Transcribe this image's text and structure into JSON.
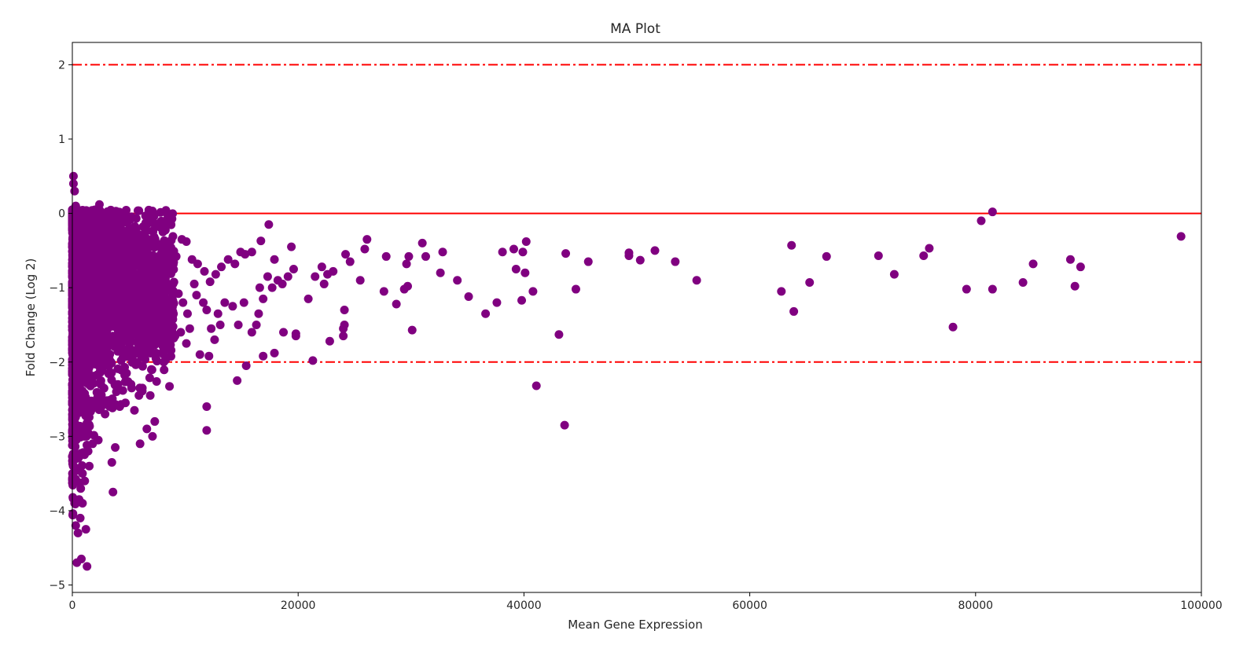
{
  "chart_data": {
    "type": "scatter",
    "title": "MA Plot",
    "xlabel": "Mean Gene Expression",
    "ylabel": "Fold Change (Log 2)",
    "xlim": [
      0,
      100000
    ],
    "ylim": [
      -5.1,
      2.3
    ],
    "x_ticks": [
      0,
      20000,
      40000,
      60000,
      80000,
      100000
    ],
    "x_tick_labels": [
      "0",
      "20000",
      "40000",
      "60000",
      "80000",
      "100000"
    ],
    "y_ticks": [
      2,
      1,
      0,
      -1,
      -2,
      -3,
      -4,
      -5
    ],
    "y_tick_labels": [
      "2",
      "1",
      "0",
      "−1",
      "−2",
      "−3",
      "−4",
      "−5"
    ],
    "grid": false,
    "point_color": "#800080",
    "reference_lines": [
      {
        "y": 2,
        "style": "dashdot",
        "color": "#ff0000"
      },
      {
        "y": 0,
        "style": "solid",
        "color": "#ff0000"
      },
      {
        "y": -2,
        "style": "dashdot",
        "color": "#ff0000"
      }
    ],
    "series": [
      {
        "points": [
          [
            100,
            0.5
          ],
          [
            100,
            0.4
          ],
          [
            200,
            0.3
          ],
          [
            300,
            0.1
          ],
          [
            150,
            -0.1
          ],
          [
            250,
            -0.3
          ],
          [
            400,
            -0.5
          ],
          [
            500,
            -0.7
          ],
          [
            80,
            -1.0
          ],
          [
            120,
            -1.4
          ],
          [
            200,
            -1.8
          ],
          [
            300,
            -2.1
          ],
          [
            400,
            -2.4
          ],
          [
            150,
            -2.7
          ],
          [
            250,
            -3.0
          ],
          [
            350,
            -3.3
          ],
          [
            100,
            -3.6
          ],
          [
            200,
            -3.9
          ],
          [
            300,
            -4.2
          ],
          [
            400,
            -4.7
          ],
          [
            800,
            -4.65
          ],
          [
            1300,
            -4.75
          ],
          [
            500,
            -4.3
          ],
          [
            700,
            -4.1
          ],
          [
            1200,
            -4.25
          ],
          [
            600,
            -3.85
          ],
          [
            900,
            -3.9
          ],
          [
            1100,
            -3.6
          ],
          [
            1500,
            -3.4
          ],
          [
            900,
            -3.5
          ],
          [
            1400,
            -3.2
          ],
          [
            1800,
            -3.1
          ],
          [
            2300,
            -3.05
          ],
          [
            3500,
            -3.35
          ],
          [
            3800,
            -3.15
          ],
          [
            3600,
            -3.75
          ],
          [
            2500,
            -2.5
          ],
          [
            2900,
            -2.7
          ],
          [
            3300,
            -2.6
          ],
          [
            3900,
            -2.4
          ],
          [
            4200,
            -2.6
          ],
          [
            4700,
            -2.55
          ],
          [
            5200,
            -2.3
          ],
          [
            5500,
            -2.65
          ],
          [
            5900,
            -2.45
          ],
          [
            6200,
            -2.35
          ],
          [
            6000,
            -3.1
          ],
          [
            6600,
            -2.9
          ],
          [
            7100,
            -3.0
          ],
          [
            6900,
            -2.45
          ],
          [
            7300,
            -2.8
          ],
          [
            7000,
            -2.1
          ],
          [
            4800,
            -2.15
          ],
          [
            5600,
            -2.0
          ],
          [
            6400,
            -1.9
          ],
          [
            7400,
            -1.95
          ],
          [
            8100,
            -2.0
          ],
          [
            8600,
            -1.8
          ],
          [
            9100,
            -1.65
          ],
          [
            9600,
            -1.6
          ],
          [
            10100,
            -1.75
          ],
          [
            10400,
            -1.55
          ],
          [
            10200,
            -1.35
          ],
          [
            9800,
            -1.2
          ],
          [
            11000,
            -1.1
          ],
          [
            11600,
            -1.2
          ],
          [
            11900,
            -1.3
          ],
          [
            12300,
            -1.55
          ],
          [
            12600,
            -1.7
          ],
          [
            13100,
            -1.5
          ],
          [
            12900,
            -1.35
          ],
          [
            13500,
            -1.2
          ],
          [
            14200,
            -1.25
          ],
          [
            14700,
            -1.5
          ],
          [
            15200,
            -1.2
          ],
          [
            15900,
            -1.6
          ],
          [
            16300,
            -1.5
          ],
          [
            16500,
            -1.35
          ],
          [
            16900,
            -1.15
          ],
          [
            16600,
            -1.0
          ],
          [
            17300,
            -0.85
          ],
          [
            17700,
            -1.0
          ],
          [
            18200,
            -0.9
          ],
          [
            18600,
            -0.95
          ],
          [
            19100,
            -0.85
          ],
          [
            19600,
            -0.75
          ],
          [
            19400,
            -0.45
          ],
          [
            17900,
            -0.62
          ],
          [
            16700,
            -0.37
          ],
          [
            17400,
            -0.15
          ],
          [
            15900,
            -0.52
          ],
          [
            15300,
            -0.55
          ],
          [
            14900,
            -0.52
          ],
          [
            14400,
            -0.68
          ],
          [
            13800,
            -0.62
          ],
          [
            13200,
            -0.72
          ],
          [
            12700,
            -0.82
          ],
          [
            12200,
            -0.92
          ],
          [
            11700,
            -0.78
          ],
          [
            11100,
            -0.68
          ],
          [
            10600,
            -0.62
          ],
          [
            10100,
            -0.38
          ],
          [
            9700,
            -0.35
          ],
          [
            9200,
            -0.58
          ],
          [
            8700,
            -0.48
          ],
          [
            8300,
            -0.52
          ],
          [
            8400,
            -0.08
          ],
          [
            7800,
            -0.42
          ],
          [
            7300,
            -0.62
          ],
          [
            6800,
            -0.38
          ],
          [
            6300,
            -0.32
          ],
          [
            5800,
            -0.42
          ],
          [
            5200,
            -0.2
          ],
          [
            4800,
            -0.12
          ],
          [
            4300,
            -0.22
          ],
          [
            3800,
            -0.32
          ],
          [
            2900,
            0.0
          ],
          [
            2400,
            0.12
          ],
          [
            1900,
            -0.08
          ],
          [
            3400,
            -0.58
          ],
          [
            4600,
            -0.78
          ],
          [
            5700,
            -0.92
          ],
          [
            6600,
            -0.68
          ],
          [
            7600,
            -1.12
          ],
          [
            8900,
            -1.32
          ],
          [
            9400,
            -1.08
          ],
          [
            10800,
            -0.95
          ],
          [
            11300,
            -1.9
          ],
          [
            11900,
            -2.6
          ],
          [
            11900,
            -2.92
          ],
          [
            12100,
            -1.92
          ],
          [
            14600,
            -2.25
          ],
          [
            15400,
            -2.05
          ],
          [
            16900,
            -1.92
          ],
          [
            17900,
            -1.88
          ],
          [
            18700,
            -1.6
          ],
          [
            19800,
            -1.62
          ],
          [
            19800,
            -1.65
          ],
          [
            20900,
            -1.15
          ],
          [
            21300,
            -1.98
          ],
          [
            21500,
            -0.85
          ],
          [
            22100,
            -0.72
          ],
          [
            22600,
            -0.82
          ],
          [
            22300,
            -0.95
          ],
          [
            23100,
            -0.78
          ],
          [
            22800,
            -1.72
          ],
          [
            24000,
            -1.55
          ],
          [
            24100,
            -1.3
          ],
          [
            24000,
            -1.65
          ],
          [
            24100,
            -1.5
          ],
          [
            24200,
            -0.55
          ],
          [
            24600,
            -0.65
          ],
          [
            25500,
            -0.9
          ],
          [
            25900,
            -0.48
          ],
          [
            26100,
            -0.35
          ],
          [
            27600,
            -1.05
          ],
          [
            27800,
            -0.58
          ],
          [
            28700,
            -1.22
          ],
          [
            29400,
            -1.02
          ],
          [
            29700,
            -0.98
          ],
          [
            29600,
            -0.68
          ],
          [
            29800,
            -0.58
          ],
          [
            30100,
            -1.57
          ],
          [
            31000,
            -0.4
          ],
          [
            31300,
            -0.58
          ],
          [
            32600,
            -0.8
          ],
          [
            32800,
            -0.52
          ],
          [
            34100,
            -0.9
          ],
          [
            35100,
            -1.12
          ],
          [
            36600,
            -1.35
          ],
          [
            37600,
            -1.2
          ],
          [
            38100,
            -0.52
          ],
          [
            39100,
            -0.48
          ],
          [
            39300,
            -0.75
          ],
          [
            39900,
            -0.52
          ],
          [
            39800,
            -1.17
          ],
          [
            40100,
            -0.8
          ],
          [
            40200,
            -0.38
          ],
          [
            40800,
            -1.05
          ],
          [
            41100,
            -2.32
          ],
          [
            43100,
            -1.63
          ],
          [
            43600,
            -2.85
          ],
          [
            43700,
            -0.54
          ],
          [
            44600,
            -1.02
          ],
          [
            45700,
            -0.65
          ],
          [
            49300,
            -0.53
          ],
          [
            49300,
            -0.57
          ],
          [
            50300,
            -0.63
          ],
          [
            51600,
            -0.5
          ],
          [
            53400,
            -0.65
          ],
          [
            55300,
            -0.9
          ],
          [
            62800,
            -1.05
          ],
          [
            63700,
            -0.43
          ],
          [
            63900,
            -1.32
          ],
          [
            65300,
            -0.93
          ],
          [
            66800,
            -0.58
          ],
          [
            71400,
            -0.57
          ],
          [
            72800,
            -0.82
          ],
          [
            75400,
            -0.57
          ],
          [
            75900,
            -0.47
          ],
          [
            78000,
            -1.53
          ],
          [
            79200,
            -1.02
          ],
          [
            80500,
            -0.1
          ],
          [
            81500,
            0.02
          ],
          [
            81500,
            -1.02
          ],
          [
            84200,
            -0.93
          ],
          [
            85100,
            -0.68
          ],
          [
            88400,
            -0.62
          ],
          [
            88800,
            -0.98
          ],
          [
            89300,
            -0.72
          ],
          [
            98200,
            -0.31
          ]
        ]
      }
    ]
  }
}
